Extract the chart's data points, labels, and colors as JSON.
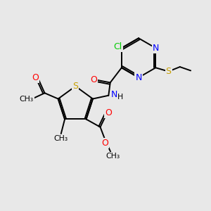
{
  "background_color": "#e8e8e8",
  "bond_color": "#000000",
  "N_color": "#0000ff",
  "S_color": "#c8a000",
  "O_color": "#ff0000",
  "Cl_color": "#00cc00",
  "figsize": [
    3.0,
    3.0
  ],
  "dpi": 100,
  "xlim": [
    0,
    10
  ],
  "ylim": [
    0,
    10
  ]
}
